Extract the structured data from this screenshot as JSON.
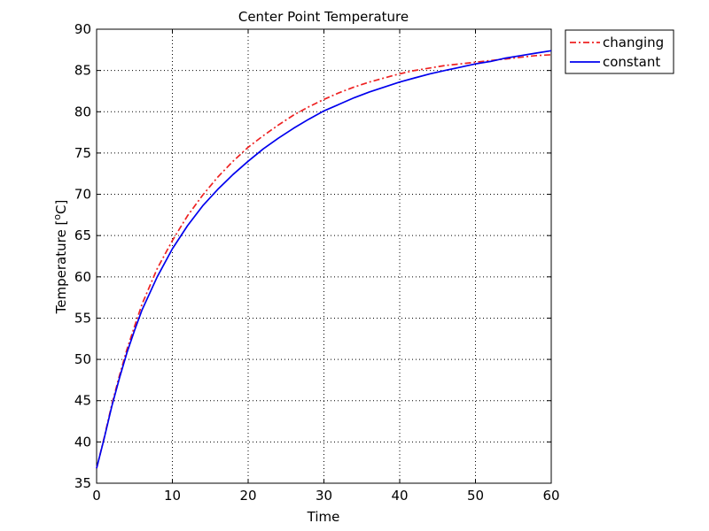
{
  "chart_data": {
    "type": "line",
    "title": "Center Point Temperature",
    "xlabel": "Time",
    "ylabel_prefix": "Temperature [",
    "ylabel_sup": "o",
    "ylabel_suffix": "C]",
    "xlim": [
      0,
      60
    ],
    "ylim": [
      35,
      90
    ],
    "xticks": [
      0,
      10,
      20,
      30,
      40,
      50,
      60
    ],
    "yticks": [
      35,
      40,
      45,
      50,
      55,
      60,
      65,
      70,
      75,
      80,
      85,
      90
    ],
    "grid": true,
    "grid_style": "dotted",
    "legend_placement": "outside-top-right",
    "series": [
      {
        "name": "changing",
        "color": "#ee2222",
        "line_style": "dash-dot",
        "x": [
          0,
          1,
          2,
          3,
          4,
          5,
          6,
          8,
          10,
          12,
          14,
          16,
          18,
          20,
          22,
          24,
          26,
          28,
          30,
          32,
          34,
          36,
          38,
          40,
          42,
          44,
          46,
          48,
          50,
          52,
          54,
          56,
          58,
          60
        ],
        "y": [
          36.8,
          40.5,
          44.5,
          48.0,
          51.2,
          54.0,
          56.7,
          61.0,
          64.4,
          67.4,
          69.9,
          72.1,
          74.0,
          75.7,
          77.1,
          78.4,
          79.6,
          80.6,
          81.5,
          82.3,
          83.0,
          83.6,
          84.1,
          84.6,
          85.0,
          85.3,
          85.6,
          85.8,
          86.0,
          86.2,
          86.4,
          86.6,
          86.8,
          86.9
        ]
      },
      {
        "name": "constant",
        "color": "#0000ee",
        "line_style": "solid",
        "x": [
          0,
          1,
          2,
          3,
          4,
          5,
          6,
          8,
          10,
          12,
          14,
          16,
          18,
          20,
          22,
          24,
          26,
          28,
          30,
          32,
          34,
          36,
          38,
          40,
          42,
          44,
          46,
          48,
          50,
          52,
          54,
          56,
          58,
          60
        ],
        "y": [
          36.8,
          40.4,
          44.3,
          47.7,
          50.8,
          53.5,
          56.0,
          60.0,
          63.4,
          66.2,
          68.6,
          70.6,
          72.4,
          74.0,
          75.5,
          76.8,
          78.0,
          79.1,
          80.1,
          80.9,
          81.7,
          82.4,
          83.0,
          83.6,
          84.1,
          84.6,
          85.0,
          85.4,
          85.8,
          86.1,
          86.5,
          86.8,
          87.1,
          87.4
        ]
      }
    ]
  }
}
